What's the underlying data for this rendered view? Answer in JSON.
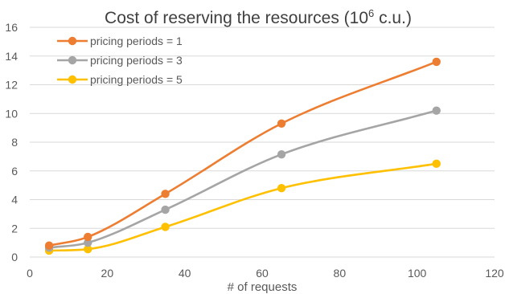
{
  "chart_data": {
    "type": "line",
    "title": "Cost of reserving the resources (10",
    "title_superscript": "6",
    "title_suffix": " c.u.)",
    "xlabel": "# of requests",
    "ylabel": "",
    "xlim": [
      0,
      120
    ],
    "ylim": [
      0,
      16
    ],
    "x_ticks": [
      "0",
      "20",
      "40",
      "60",
      "80",
      "100",
      "120"
    ],
    "y_ticks": [
      "0",
      "2",
      "4",
      "6",
      "8",
      "10",
      "12",
      "14",
      "16"
    ],
    "grid": "horizontal",
    "legend_position": "top-left",
    "smooth": true,
    "x": [
      5,
      15,
      35,
      65,
      105
    ],
    "series": [
      {
        "name": "pricing periods = 1",
        "values": [
          0.8,
          1.4,
          4.4,
          9.3,
          13.6
        ],
        "color": "#ed7d31"
      },
      {
        "name": "pricing periods = 3",
        "values": [
          0.65,
          1.0,
          3.3,
          7.15,
          10.2
        ],
        "color": "#a5a5a5"
      },
      {
        "name": "pricing periods = 5",
        "values": [
          0.45,
          0.55,
          2.1,
          4.8,
          6.5
        ],
        "color": "#ffc000"
      }
    ]
  }
}
